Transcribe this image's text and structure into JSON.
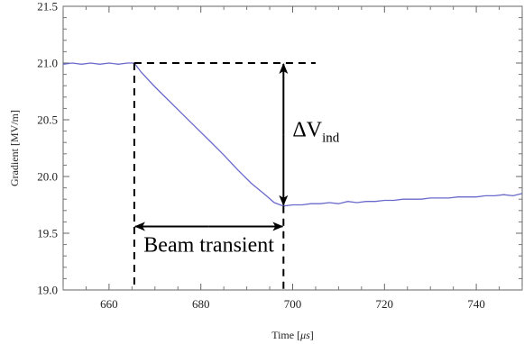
{
  "chart_data": {
    "type": "line",
    "xlabel": "Time [",
    "xlabel_unit": "μs",
    "xlabel_close": "]",
    "ylabel": "Gradient [MV/m]",
    "xlim": [
      650,
      750
    ],
    "ylim": [
      19.0,
      21.5
    ],
    "x_ticks": [
      660,
      680,
      700,
      720,
      740
    ],
    "x_tick_labels": [
      "660",
      "680",
      "700",
      "720",
      "740"
    ],
    "y_ticks": [
      19.0,
      19.5,
      20.0,
      20.5,
      21.0,
      21.5
    ],
    "y_tick_labels": [
      "19.0",
      "19.5",
      "20.0",
      "20.5",
      "21.0",
      "21.5"
    ],
    "series": [
      {
        "color": "#6a6acb",
        "x": [
          650,
          652,
          654,
          656,
          658,
          660,
          662,
          664,
          665.5,
          667,
          670,
          673,
          676,
          679,
          682,
          685,
          688,
          691,
          694,
          696,
          698,
          700,
          702,
          704,
          706,
          708,
          710,
          712,
          714,
          716,
          718,
          720,
          722,
          724,
          726,
          728,
          730,
          732,
          734,
          736,
          738,
          740,
          742,
          744,
          746,
          748,
          750
        ],
        "y": [
          20.99,
          21.0,
          20.99,
          21.0,
          20.99,
          21.0,
          20.99,
          21.0,
          21.0,
          20.92,
          20.79,
          20.67,
          20.55,
          20.43,
          20.31,
          20.19,
          20.06,
          19.94,
          19.84,
          19.77,
          19.74,
          19.75,
          19.75,
          19.76,
          19.76,
          19.77,
          19.76,
          19.78,
          19.77,
          19.78,
          19.78,
          19.79,
          19.79,
          19.8,
          19.8,
          19.8,
          19.81,
          19.81,
          19.81,
          19.82,
          19.82,
          19.82,
          19.83,
          19.83,
          19.84,
          19.83,
          19.85
        ]
      }
    ],
    "annotations": {
      "delta_symbol": "ΔV",
      "delta_subscript": "ind",
      "transient_label": "Beam transient",
      "ref_level": 21.0,
      "ref_x_end": 705,
      "drop_x": 698,
      "drop_level": 19.74,
      "transient_start": 665.5,
      "transient_end": 698,
      "transient_y": 19.56
    }
  }
}
